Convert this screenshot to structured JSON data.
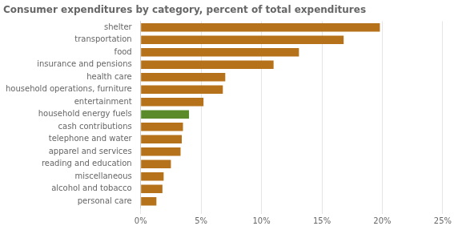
{
  "chart_data": {
    "type": "bar",
    "orientation": "horizontal",
    "title": "Consumer expenditures by category, percent of total expenditures",
    "categories": [
      "personal care",
      "alcohol and tobacco",
      "miscellaneous",
      "reading and education",
      "apparel and services",
      "telephone and water",
      "cash contributions",
      "household energy fuels",
      "entertainment",
      "household operations, furniture",
      "health care",
      "insurance and pensions",
      "food",
      "transportation",
      "shelter"
    ],
    "values": [
      1.3,
      1.8,
      1.9,
      2.5,
      3.3,
      3.4,
      3.5,
      4.0,
      5.2,
      6.8,
      7.0,
      11.0,
      13.1,
      16.8,
      19.8
    ],
    "colors": [
      "#b5721a",
      "#b5721a",
      "#b5721a",
      "#b5721a",
      "#b5721a",
      "#b5721a",
      "#b5721a",
      "#5a8a2a",
      "#b5721a",
      "#b5721a",
      "#b5721a",
      "#b5721a",
      "#b5721a",
      "#b5721a",
      "#b5721a"
    ],
    "xlim": [
      0,
      25
    ],
    "xticks": [
      {
        "value": 0,
        "label": "0%"
      },
      {
        "value": 5,
        "label": "5%"
      },
      {
        "value": 10,
        "label": "10%"
      },
      {
        "value": 15,
        "label": "15%"
      },
      {
        "value": 20,
        "label": "20%"
      },
      {
        "value": 25,
        "label": "25%"
      }
    ],
    "grid": true
  }
}
